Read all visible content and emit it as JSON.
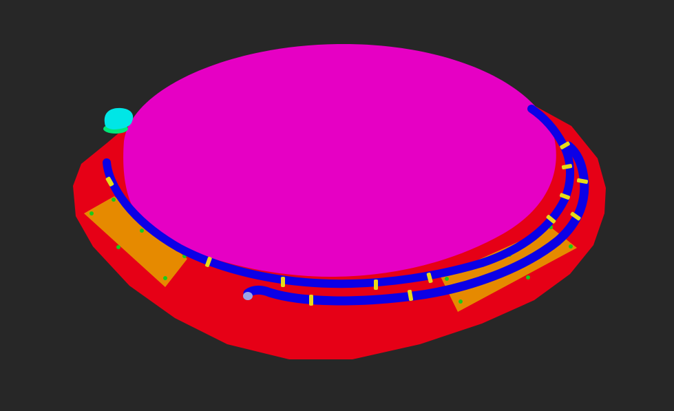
{
  "scene": {
    "background_color": "#272727",
    "colors": {
      "base_ring": "#e60016",
      "dome": "#e600c4",
      "pads": "#e68a00",
      "pad_studs": "#19cc1a",
      "pipes": "#0c00e6",
      "pipe_clamps": "#e6dc18",
      "valve": "#00e6e6",
      "valve_base": "#00e678",
      "pipe_end_cap": "#9aa4e6"
    },
    "components": [
      "base-ring",
      "dome",
      "pad-left",
      "pad-right",
      "pipe-inner",
      "pipe-outer",
      "pipe-clamps",
      "valve",
      "pipe-end-cap"
    ]
  }
}
